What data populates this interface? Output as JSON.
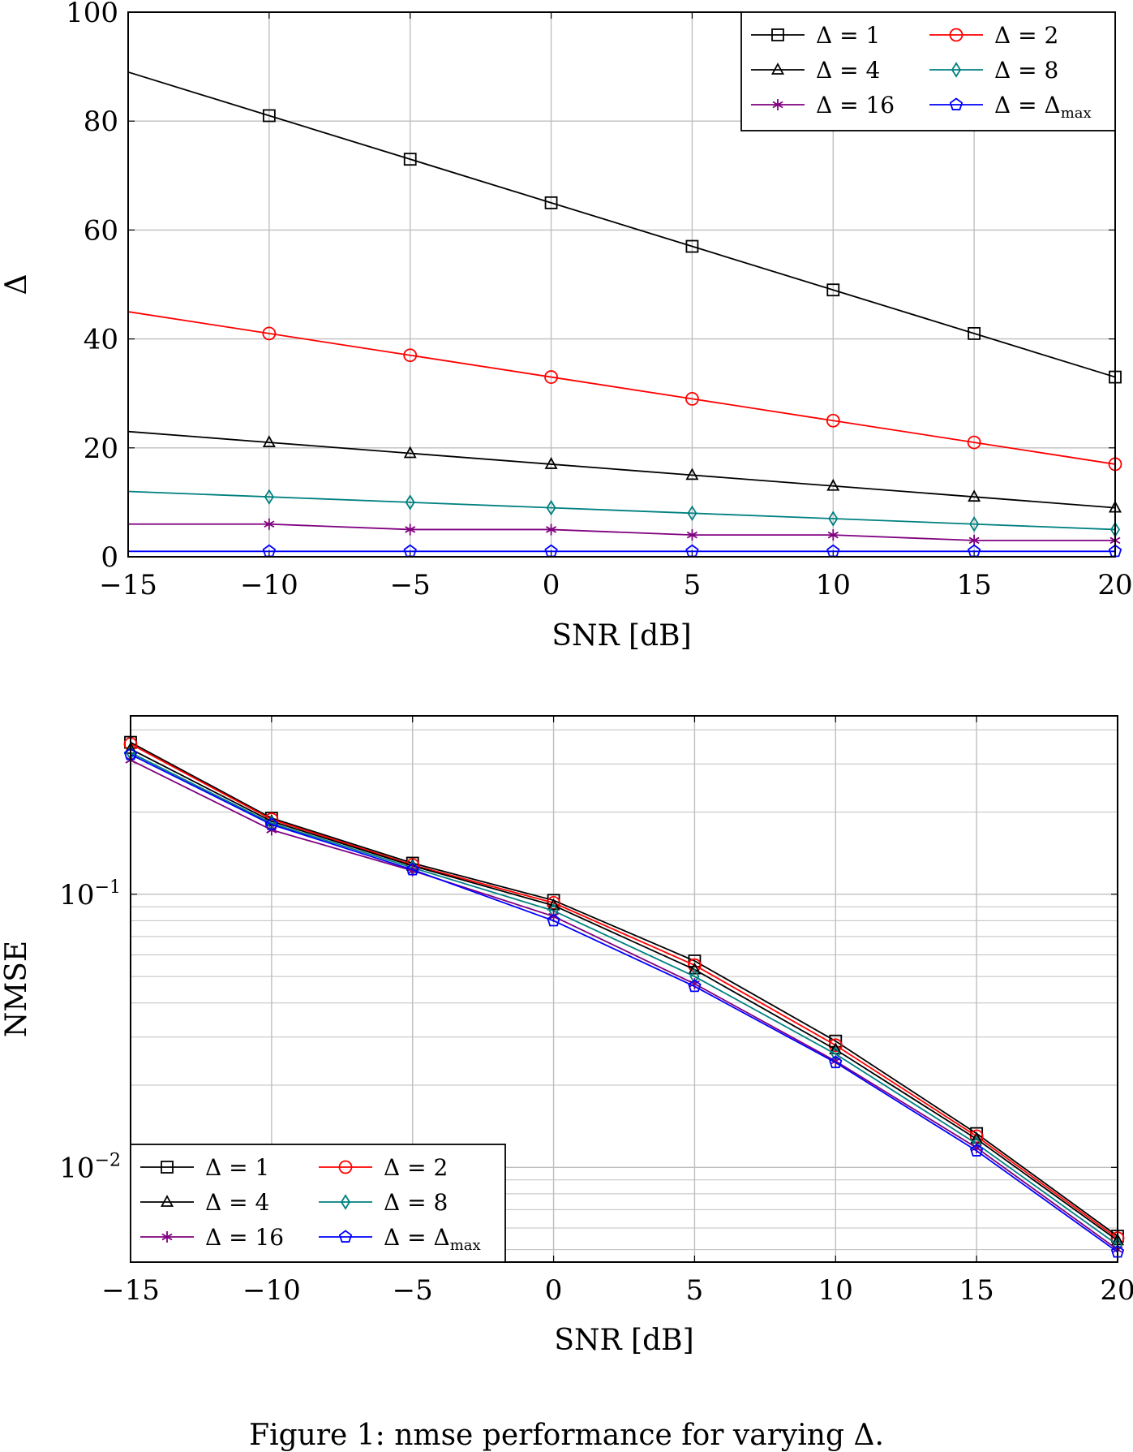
{
  "caption": "Figure 1: nmse performance for varying Δ.",
  "chart_data": [
    {
      "type": "line",
      "xlabel": "SNR [dB]",
      "ylabel": "Δ",
      "xlim": [
        -15,
        20
      ],
      "ylim": [
        0,
        100
      ],
      "xticks": [
        -15,
        -10,
        -5,
        0,
        5,
        10,
        15,
        20
      ],
      "xtick_labels": [
        "−15",
        "−10",
        "−5",
        "0",
        "5",
        "10",
        "15",
        "20"
      ],
      "yticks": [
        0,
        20,
        40,
        60,
        80,
        100
      ],
      "ytick_labels": [
        "0",
        "20",
        "40",
        "60",
        "80",
        "100"
      ],
      "yscale": "linear",
      "grid": true,
      "legend_position": "top-right",
      "x": [
        -15,
        -10,
        -5,
        0,
        5,
        10,
        15,
        20
      ],
      "series": [
        {
          "name": "Δ = 1",
          "color": "#000000",
          "marker": "square",
          "values": [
            89,
            81,
            73,
            65,
            57,
            49,
            41,
            33
          ]
        },
        {
          "name": "Δ = 2",
          "color": "#ff0000",
          "marker": "circle",
          "values": [
            45,
            41,
            37,
            33,
            29,
            25,
            21,
            17
          ]
        },
        {
          "name": "Δ = 4",
          "color": "#000000",
          "marker": "triangle",
          "values": [
            23,
            21,
            19,
            17,
            15,
            13,
            11,
            9
          ]
        },
        {
          "name": "Δ = 8",
          "color": "#008080",
          "marker": "diamond",
          "values": [
            12,
            11,
            10,
            9,
            8,
            7,
            6,
            5
          ]
        },
        {
          "name": "Δ = 16",
          "color": "#800080",
          "marker": "star",
          "values": [
            6,
            6,
            5,
            5,
            4,
            4,
            3,
            3
          ]
        },
        {
          "name": "Δ = Δmax",
          "color": "#0000ff",
          "marker": "pentagon",
          "values": [
            1,
            1,
            1,
            1,
            1,
            1,
            1,
            1
          ]
        }
      ]
    },
    {
      "type": "line",
      "xlabel": "SNR [dB]",
      "ylabel": "NMSE",
      "xlim": [
        -15,
        20
      ],
      "ylim": [
        0.0045,
        0.45
      ],
      "xticks": [
        -15,
        -10,
        -5,
        0,
        5,
        10,
        15,
        20
      ],
      "xtick_labels": [
        "−15",
        "−10",
        "−5",
        "0",
        "5",
        "10",
        "15",
        "20"
      ],
      "yticks": [
        0.01,
        0.1
      ],
      "ytick_labels": [
        "10−2",
        "10−1"
      ],
      "yscale": "log",
      "grid": true,
      "legend_position": "bottom-left",
      "x": [
        -15,
        -10,
        -5,
        0,
        5,
        10,
        15,
        20
      ],
      "series": [
        {
          "name": "Δ = 1",
          "color": "#000000",
          "marker": "square",
          "values": [
            0.36,
            0.19,
            0.13,
            0.095,
            0.057,
            0.029,
            0.0133,
            0.0056
          ]
        },
        {
          "name": "Δ = 2",
          "color": "#ff0000",
          "marker": "circle",
          "values": [
            0.355,
            0.188,
            0.128,
            0.093,
            0.055,
            0.028,
            0.013,
            0.0055
          ]
        },
        {
          "name": "Δ = 4",
          "color": "#000000",
          "marker": "triangle",
          "values": [
            0.34,
            0.185,
            0.127,
            0.091,
            0.053,
            0.027,
            0.0127,
            0.0054
          ]
        },
        {
          "name": "Δ = 8",
          "color": "#008080",
          "marker": "diamond",
          "values": [
            0.33,
            0.182,
            0.125,
            0.087,
            0.05,
            0.026,
            0.0122,
            0.0052
          ]
        },
        {
          "name": "Δ = 16",
          "color": "#800080",
          "marker": "star",
          "values": [
            0.31,
            0.172,
            0.122,
            0.083,
            0.047,
            0.0245,
            0.0118,
            0.005
          ]
        },
        {
          "name": "Δ = Δmax",
          "color": "#0000ff",
          "marker": "pentagon",
          "values": [
            0.325,
            0.18,
            0.123,
            0.08,
            0.046,
            0.0242,
            0.0115,
            0.0049
          ]
        }
      ]
    }
  ]
}
